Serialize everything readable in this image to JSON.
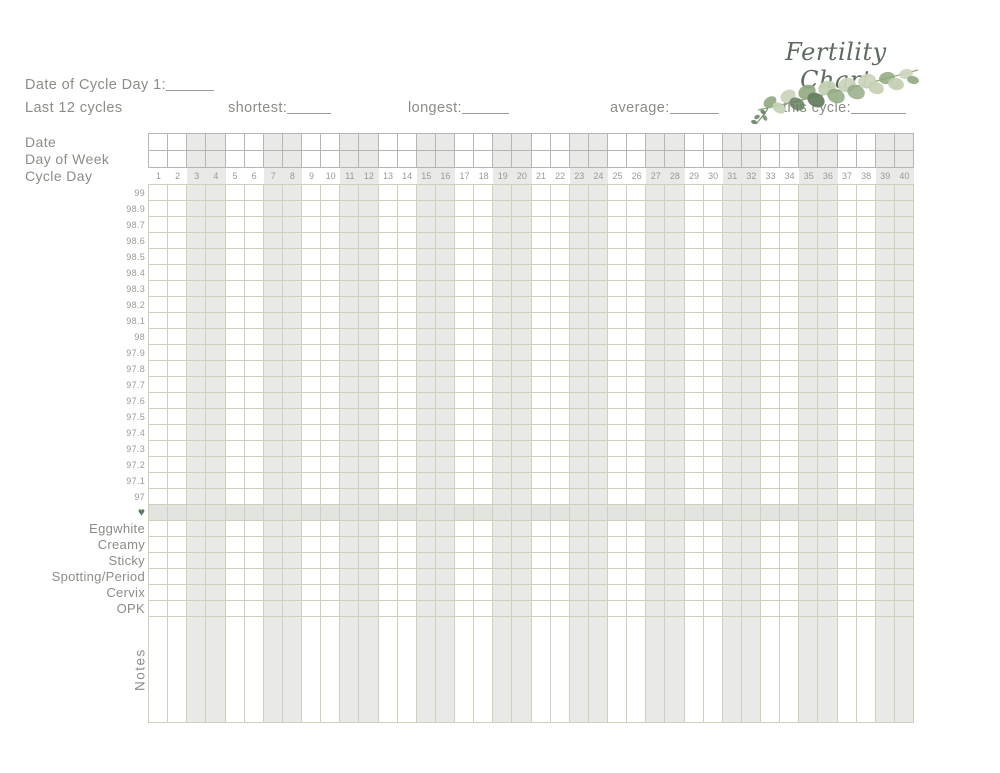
{
  "header": {
    "title": "Fertility Chart",
    "date_of_cycle_day_label": "Date of Cycle Day 1:",
    "last_cycles_label": "Last 12 cycles",
    "shortest_label": "shortest:",
    "longest_label": "longest:",
    "average_label": "average:",
    "this_cycle_label": "this cycle:"
  },
  "grid": {
    "left_labels": {
      "date": "Date",
      "day_of_week": "Day of Week",
      "cycle_day": "Cycle Day"
    },
    "cycle_days": [
      1,
      2,
      3,
      4,
      5,
      6,
      7,
      8,
      9,
      10,
      11,
      12,
      13,
      14,
      15,
      16,
      17,
      18,
      19,
      20,
      21,
      22,
      23,
      24,
      25,
      26,
      27,
      28,
      29,
      30,
      31,
      32,
      33,
      34,
      35,
      36,
      37,
      38,
      39,
      40
    ],
    "temperatures": [
      "99",
      "98.9",
      "98.7",
      "98.6",
      "98.5",
      "98.4",
      "98.3",
      "98.2",
      "98.1",
      "98",
      "97.9",
      "97.8",
      "97.7",
      "97.6",
      "97.5",
      "97.4",
      "97.3",
      "97.2",
      "97.1",
      "97"
    ],
    "heart_symbol": "♥",
    "tracking_rows": [
      "Eggwhite",
      "Creamy",
      "Sticky",
      "Spotting/Period",
      "Cervix",
      "OPK"
    ],
    "notes_label": "Notes"
  },
  "colors": {
    "label_gray": "#8c8c86",
    "faint_label_gray": "#9a9a92",
    "grid_line_olive": "#cfcfba",
    "grid_line_gray": "#b6b6b0",
    "column_shade": "#e9e9e7",
    "heart_row_shade": "#e2e4df",
    "title_green": "#5c6b5e",
    "accent_green": "#5e7a63",
    "leaf_dark": "#66805f",
    "leaf_mid": "#8fa87f",
    "leaf_light": "#c3cfb2",
    "leaf_pale": "#ccd5bd"
  }
}
